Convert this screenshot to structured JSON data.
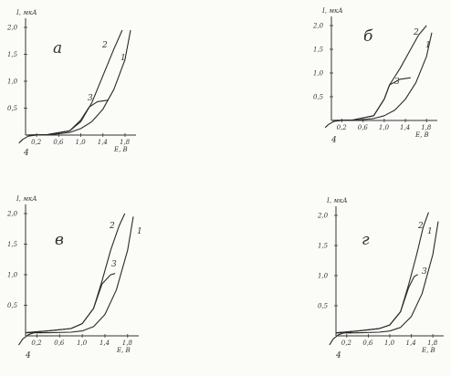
{
  "chart_data": [
    {
      "type": "line",
      "panel_label": "а",
      "ylabel": "I, мкА",
      "xlabel": "E, B",
      "xlim": [
        0.0,
        1.9
      ],
      "ylim": [
        0.0,
        2.0
      ],
      "x_ticks": [
        0.2,
        0.6,
        1.0,
        1.4,
        1.8
      ],
      "x_tick_labels": [
        "0,2",
        "0,6",
        "1,0",
        "1,4",
        "1,8"
      ],
      "y_ticks": [
        0.5,
        1.0,
        1.5,
        2.0
      ],
      "y_tick_labels": [
        "0,5",
        "1,0",
        "1,5",
        "2,0"
      ],
      "grid": false,
      "series": [
        {
          "name": "1",
          "x": [
            0.0,
            0.4,
            0.8,
            1.0,
            1.2,
            1.4,
            1.6,
            1.8,
            1.9
          ],
          "y": [
            0.0,
            0.0,
            0.05,
            0.12,
            0.25,
            0.48,
            0.85,
            1.4,
            1.95
          ]
        },
        {
          "name": "2",
          "x": [
            0.0,
            0.4,
            0.8,
            1.0,
            1.2,
            1.4,
            1.6,
            1.75
          ],
          "y": [
            0.0,
            0.01,
            0.08,
            0.25,
            0.6,
            1.1,
            1.6,
            1.95
          ]
        },
        {
          "name": "3",
          "x": [
            0.0,
            0.4,
            0.8,
            1.0,
            1.15,
            1.3,
            1.5
          ],
          "y": [
            0.0,
            0.01,
            0.08,
            0.28,
            0.52,
            0.62,
            0.65
          ]
        },
        {
          "name": "4",
          "x": [
            -0.12,
            -0.05,
            0.05,
            0.2,
            0.4
          ],
          "y": [
            -0.15,
            -0.08,
            -0.02,
            0.0,
            0.0
          ]
        }
      ]
    },
    {
      "type": "line",
      "panel_label": "б",
      "ylabel": "I, мкА",
      "xlabel": "E, B",
      "xlim": [
        0.0,
        1.9
      ],
      "ylim": [
        0.0,
        2.0
      ],
      "x_ticks": [
        0.2,
        0.6,
        1.0,
        1.4,
        1.8
      ],
      "x_tick_labels": [
        "0,2",
        "0,6",
        "1,0",
        "1,4",
        "1,8"
      ],
      "y_ticks": [
        0.5,
        1.0,
        1.5,
        2.0
      ],
      "y_tick_labels": [
        "0,5",
        "1,0",
        "1,5",
        "2,0"
      ],
      "grid": false,
      "series": [
        {
          "name": "1",
          "x": [
            0.0,
            0.4,
            0.8,
            1.0,
            1.2,
            1.4,
            1.6,
            1.8,
            1.9
          ],
          "y": [
            0.0,
            0.0,
            0.04,
            0.1,
            0.22,
            0.45,
            0.8,
            1.35,
            1.85
          ]
        },
        {
          "name": "2",
          "x": [
            0.0,
            0.4,
            0.8,
            1.0,
            1.1,
            1.3,
            1.5,
            1.65,
            1.8
          ],
          "y": [
            0.0,
            0.01,
            0.1,
            0.45,
            0.75,
            1.1,
            1.5,
            1.8,
            2.0
          ]
        },
        {
          "name": "3",
          "x": [
            0.0,
            0.4,
            0.8,
            1.0,
            1.1,
            1.3,
            1.5
          ],
          "y": [
            0.0,
            0.01,
            0.1,
            0.45,
            0.75,
            0.87,
            0.9
          ]
        },
        {
          "name": "4",
          "x": [
            -0.12,
            -0.05,
            0.05,
            0.2,
            0.4
          ],
          "y": [
            -0.15,
            -0.08,
            -0.02,
            0.0,
            0.0
          ]
        }
      ]
    },
    {
      "type": "line",
      "panel_label": "в",
      "ylabel": "I, мкА",
      "xlabel": "E, B",
      "xlim": [
        0.0,
        1.9
      ],
      "ylim": [
        0.0,
        2.0
      ],
      "x_ticks": [
        0.2,
        0.6,
        1.0,
        1.4,
        1.8
      ],
      "x_tick_labels": [
        "0,2",
        "0,6",
        "1,0",
        "1,4",
        "1,8"
      ],
      "y_ticks": [
        0.5,
        1.0,
        1.5,
        2.0
      ],
      "y_tick_labels": [
        "0,5",
        "1,0",
        "1,5",
        "2,0"
      ],
      "grid": false,
      "series": [
        {
          "name": "1",
          "x": [
            0.0,
            0.4,
            0.8,
            1.0,
            1.2,
            1.4,
            1.6,
            1.8,
            1.9
          ],
          "y": [
            0.05,
            0.05,
            0.06,
            0.08,
            0.15,
            0.35,
            0.75,
            1.4,
            1.95
          ]
        },
        {
          "name": "2",
          "x": [
            0.0,
            0.4,
            0.8,
            1.0,
            1.2,
            1.35,
            1.5,
            1.65,
            1.75
          ],
          "y": [
            0.05,
            0.08,
            0.12,
            0.2,
            0.45,
            0.9,
            1.4,
            1.8,
            2.0
          ]
        },
        {
          "name": "3",
          "x": [
            0.0,
            0.4,
            0.8,
            1.0,
            1.2,
            1.35,
            1.5,
            1.58
          ],
          "y": [
            0.05,
            0.08,
            0.12,
            0.2,
            0.45,
            0.85,
            1.0,
            1.02
          ]
        },
        {
          "name": "4",
          "x": [
            -0.12,
            -0.05,
            0.05,
            0.15,
            0.3
          ],
          "y": [
            -0.15,
            -0.05,
            0.02,
            0.05,
            0.05
          ]
        }
      ]
    },
    {
      "type": "line",
      "panel_label": "г",
      "ylabel": "I, мкА",
      "xlabel": "E, B",
      "xlim": [
        0.0,
        1.9
      ],
      "ylim": [
        0.0,
        2.0
      ],
      "x_ticks": [
        0.2,
        0.6,
        1.0,
        1.4,
        1.8
      ],
      "x_tick_labels": [
        "0,2",
        "0,6",
        "1,0",
        "1,4",
        "1,8"
      ],
      "y_ticks": [
        0.5,
        1.0,
        1.5,
        2.0
      ],
      "y_tick_labels": [
        "0,5",
        "1,0",
        "1,5",
        "2,0"
      ],
      "grid": false,
      "series": [
        {
          "name": "1",
          "x": [
            0.0,
            0.4,
            0.8,
            1.0,
            1.2,
            1.4,
            1.6,
            1.8,
            1.9
          ],
          "y": [
            0.05,
            0.05,
            0.06,
            0.08,
            0.14,
            0.32,
            0.7,
            1.35,
            1.9
          ]
        },
        {
          "name": "2",
          "x": [
            0.0,
            0.4,
            0.8,
            1.0,
            1.2,
            1.35,
            1.5,
            1.62,
            1.72
          ],
          "y": [
            0.05,
            0.08,
            0.12,
            0.18,
            0.4,
            0.85,
            1.35,
            1.8,
            2.05
          ]
        },
        {
          "name": "3",
          "x": [
            0.0,
            0.4,
            0.8,
            1.0,
            1.2,
            1.35,
            1.45,
            1.52
          ],
          "y": [
            0.05,
            0.08,
            0.12,
            0.18,
            0.4,
            0.8,
            0.98,
            1.02
          ]
        },
        {
          "name": "4",
          "x": [
            -0.12,
            -0.05,
            0.05,
            0.15,
            0.3
          ],
          "y": [
            -0.15,
            -0.05,
            0.02,
            0.05,
            0.05
          ]
        }
      ]
    }
  ]
}
